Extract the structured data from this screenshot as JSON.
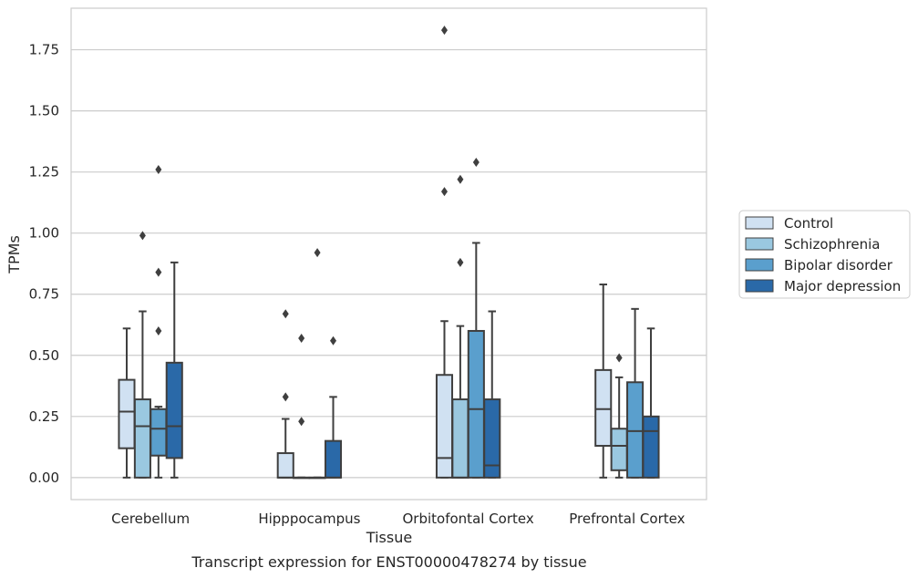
{
  "chart_data": {
    "type": "box",
    "title": "Transcript expression for ENST00000478274 by tissue",
    "xlabel": "Tissue",
    "ylabel": "TPMs",
    "ylim": [
      -0.09,
      1.92
    ],
    "yticks": [
      "0.00",
      "0.25",
      "0.50",
      "0.75",
      "1.00",
      "1.25",
      "1.50",
      "1.75"
    ],
    "grid": true,
    "legend_position": "right",
    "categories": [
      "Cerebellum",
      "Hipppocampus",
      "Orbitofontal Cortex",
      "Prefrontal Cortex"
    ],
    "series": [
      {
        "name": "Control",
        "color": "#d0e1f2",
        "boxes": [
          {
            "q1": 0.12,
            "median": 0.27,
            "q3": 0.4,
            "whisker_low": 0.0,
            "whisker_high": 0.61,
            "outliers": []
          },
          {
            "q1": 0.0,
            "median": 0.0,
            "q3": 0.1,
            "whisker_low": 0.0,
            "whisker_high": 0.24,
            "outliers": [
              0.33,
              0.67
            ]
          },
          {
            "q1": 0.0,
            "median": 0.08,
            "q3": 0.42,
            "whisker_low": 0.0,
            "whisker_high": 0.64,
            "outliers": [
              1.17,
              1.83
            ]
          },
          {
            "q1": 0.13,
            "median": 0.28,
            "q3": 0.44,
            "whisker_low": 0.0,
            "whisker_high": 0.79,
            "outliers": []
          }
        ]
      },
      {
        "name": "Schizophrenia",
        "color": "#9ac8e0",
        "boxes": [
          {
            "q1": 0.0,
            "median": 0.21,
            "q3": 0.32,
            "whisker_low": 0.0,
            "whisker_high": 0.68,
            "outliers": [
              0.99
            ]
          },
          {
            "q1": 0.0,
            "median": 0.0,
            "q3": 0.0,
            "whisker_low": 0.0,
            "whisker_high": 0.0,
            "outliers": [
              0.23,
              0.57
            ]
          },
          {
            "q1": 0.0,
            "median": 0.0,
            "q3": 0.32,
            "whisker_low": 0.0,
            "whisker_high": 0.62,
            "outliers": [
              0.88,
              1.22
            ]
          },
          {
            "q1": 0.03,
            "median": 0.13,
            "q3": 0.2,
            "whisker_low": 0.0,
            "whisker_high": 0.41,
            "outliers": [
              0.49
            ]
          }
        ]
      },
      {
        "name": "Bipolar disorder",
        "color": "#5a9fcd",
        "boxes": [
          {
            "q1": 0.09,
            "median": 0.2,
            "q3": 0.28,
            "whisker_low": 0.0,
            "whisker_high": 0.29,
            "outliers": [
              0.6,
              0.84,
              1.26
            ]
          },
          {
            "q1": 0.0,
            "median": 0.0,
            "q3": 0.0,
            "whisker_low": 0.0,
            "whisker_high": 0.0,
            "outliers": [
              0.92
            ]
          },
          {
            "q1": 0.0,
            "median": 0.28,
            "q3": 0.6,
            "whisker_low": 0.0,
            "whisker_high": 0.96,
            "outliers": [
              1.29
            ]
          },
          {
            "q1": 0.0,
            "median": 0.19,
            "q3": 0.39,
            "whisker_low": 0.0,
            "whisker_high": 0.69,
            "outliers": []
          }
        ]
      },
      {
        "name": "Major depression",
        "color": "#2a69a8",
        "boxes": [
          {
            "q1": 0.08,
            "median": 0.21,
            "q3": 0.47,
            "whisker_low": 0.0,
            "whisker_high": 0.88,
            "outliers": []
          },
          {
            "q1": 0.0,
            "median": 0.0,
            "q3": 0.15,
            "whisker_low": 0.0,
            "whisker_high": 0.33,
            "outliers": [
              0.56
            ]
          },
          {
            "q1": 0.0,
            "median": 0.05,
            "q3": 0.32,
            "whisker_low": 0.0,
            "whisker_high": 0.68,
            "outliers": []
          },
          {
            "q1": 0.0,
            "median": 0.19,
            "q3": 0.25,
            "whisker_low": 0.0,
            "whisker_high": 0.61,
            "outliers": []
          }
        ]
      }
    ]
  }
}
